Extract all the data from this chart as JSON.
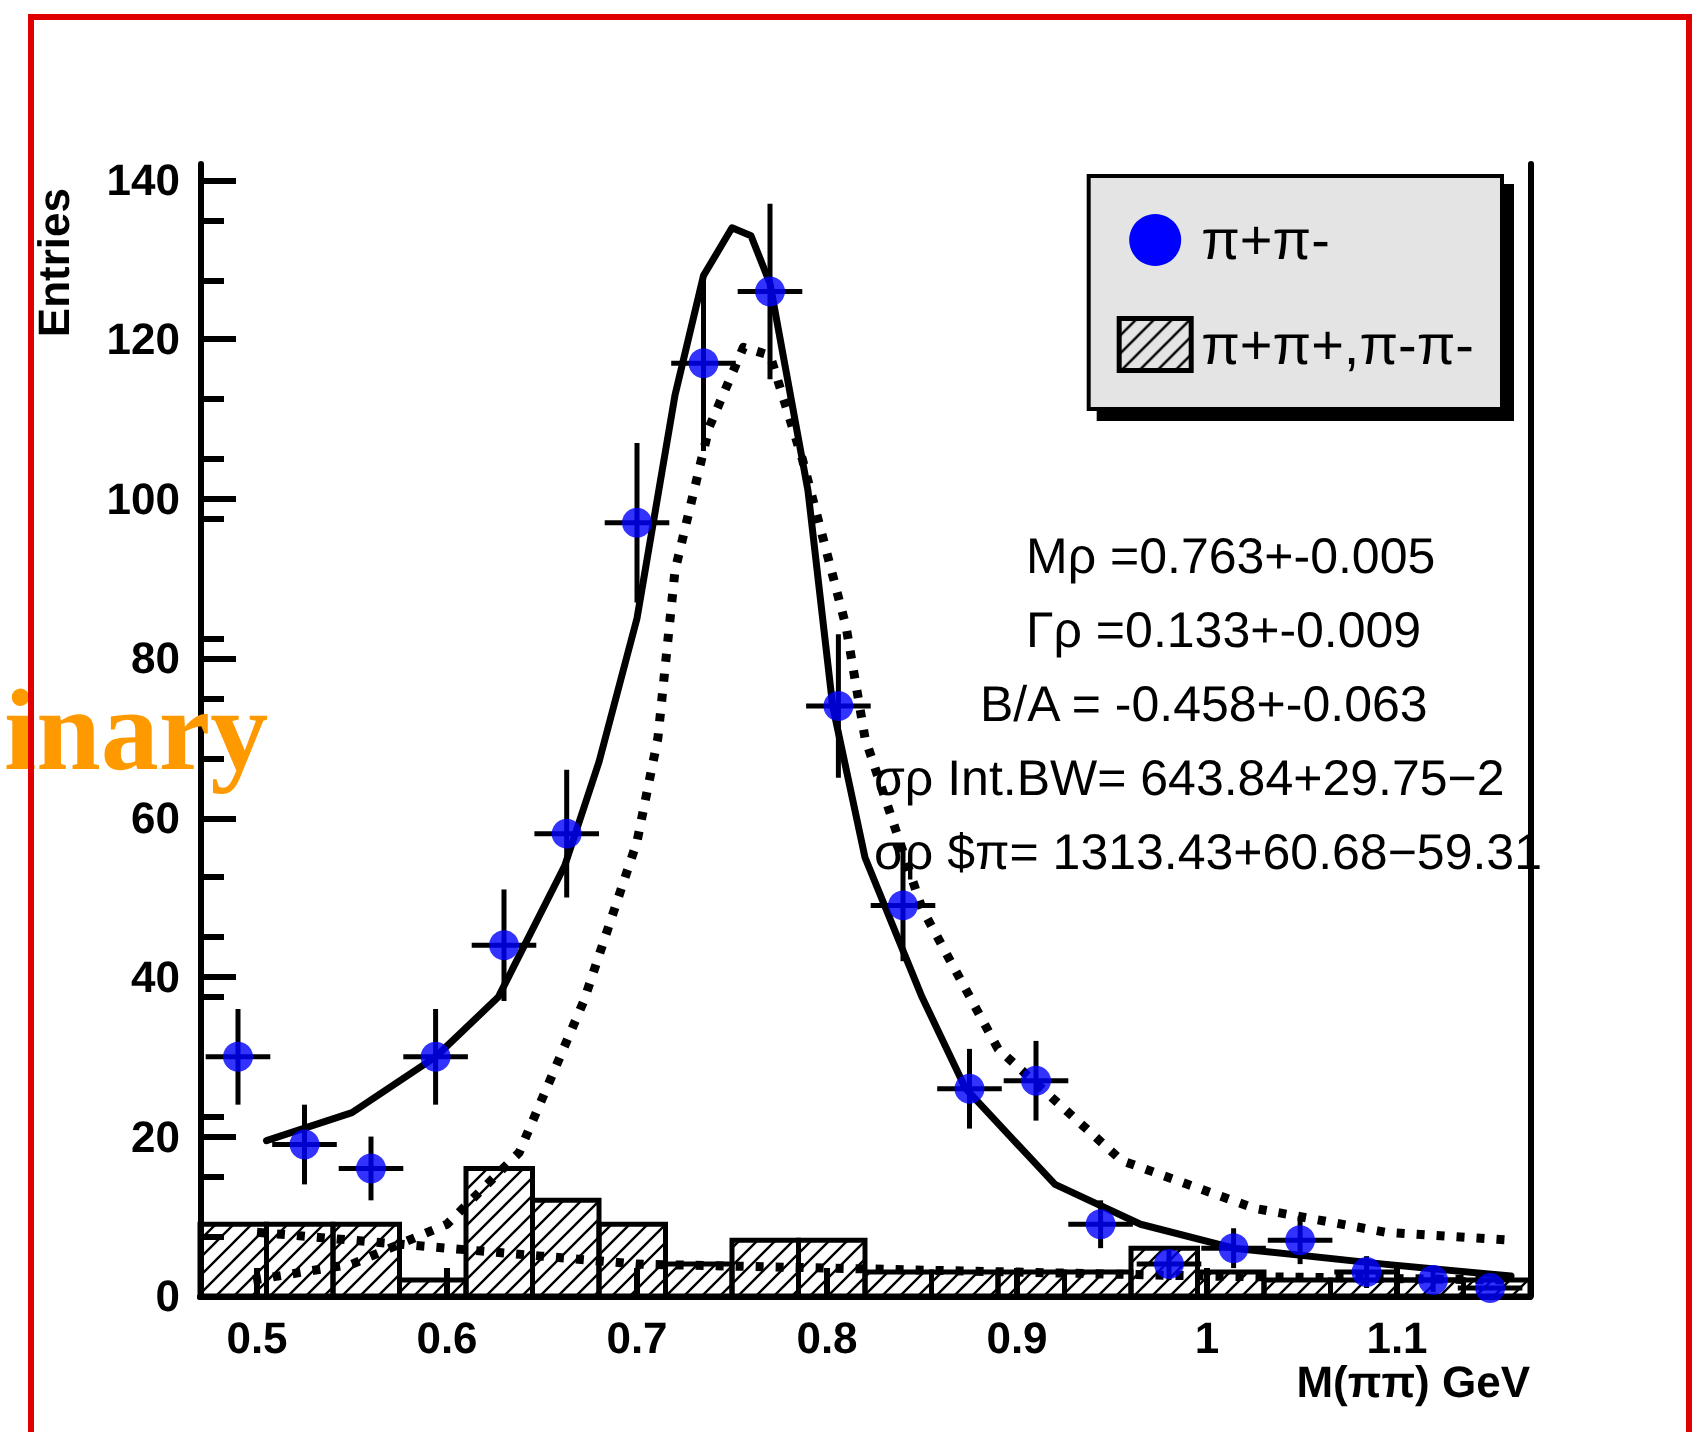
{
  "chart_data": {
    "type": "scatter",
    "xlabel": "M(ππ) GeV",
    "ylabel": "Entries",
    "xlim": [
      0.47,
      1.17
    ],
    "ylim": [
      0,
      142
    ],
    "xticks": [
      0.5,
      0.6,
      0.7,
      0.8,
      0.9,
      1,
      1.1
    ],
    "yticks": [
      0,
      20,
      40,
      60,
      80,
      100,
      120,
      140
    ],
    "grid": false,
    "legend": "top right",
    "marker": "circle",
    "annotations": [
      "Mρ =0.763+-0.005",
      "Γρ =0.133+-0.009",
      "B/A = -0.458+-0.063",
      "σρ Int.BW= 643.84+29.75−2",
      "σρ $π= 1313.43+60.68−59.31",
      "inary"
    ],
    "series": [
      {
        "name": "π+π-",
        "color": "#0000ff",
        "x": [
          0.49,
          0.525,
          0.56,
          0.594,
          0.63,
          0.663,
          0.7,
          0.735,
          0.77,
          0.806,
          0.84,
          0.875,
          0.91,
          0.944,
          0.98,
          1.014,
          1.049,
          1.084,
          1.119,
          1.149
        ],
        "values": [
          30,
          19,
          16,
          30,
          44,
          58,
          97,
          117,
          126,
          74,
          49,
          26,
          27,
          9,
          4,
          6,
          7,
          3,
          2,
          1
        ],
        "errors": [
          6,
          5,
          4,
          6,
          7,
          8,
          10,
          11,
          11,
          9,
          7,
          5,
          5,
          3,
          2,
          2.5,
          3,
          2,
          1.5,
          null
        ],
        "xerrors": [
          0.017,
          0.017,
          0.017,
          0.017,
          0.017,
          0.017,
          0.017,
          0.017,
          0.017,
          0.017,
          0.017,
          0.017,
          0.017,
          0.017,
          0.017,
          0.017,
          0.017,
          0.017,
          0.017,
          0.017
        ]
      },
      {
        "type": "histogram",
        "name": "π+π+,π-π-",
        "color": "#000000",
        "bins": [
          0.47,
          0.505,
          0.54,
          0.575,
          0.61,
          0.645,
          0.68,
          0.715,
          0.75,
          0.785,
          0.82,
          0.855,
          0.89,
          0.925,
          0.96,
          0.995,
          1.03,
          1.065,
          1.1,
          1.135,
          1.17
        ],
        "values": [
          9,
          9,
          9,
          2,
          16,
          12,
          9,
          4,
          7,
          7,
          3,
          3,
          3,
          3,
          6,
          3,
          2,
          2,
          2,
          2
        ]
      },
      {
        "type": "line",
        "marker": "none",
        "color": "#000000",
        "line_style": "solid",
        "x": [
          0.505,
          0.55,
          0.594,
          0.627,
          0.662,
          0.68,
          0.7,
          0.72,
          0.735,
          0.75,
          0.76,
          0.77,
          0.79,
          0.803,
          0.82,
          0.85,
          0.873,
          0.92,
          0.965,
          1.014,
          1.093,
          1.16
        ],
        "values": [
          19.5,
          23,
          30,
          37.5,
          54,
          67,
          85,
          113,
          128,
          134,
          133,
          127,
          101,
          74,
          55,
          37.5,
          26,
          14,
          9,
          6,
          4,
          2.5
        ]
      },
      {
        "type": "line",
        "marker": "none",
        "color": "#000000",
        "line_style": "dotted",
        "x": [
          0.498,
          0.55,
          0.6,
          0.638,
          0.672,
          0.7,
          0.711,
          0.72,
          0.738,
          0.756,
          0.77,
          0.787,
          0.81,
          0.82,
          0.85,
          0.89,
          0.955,
          1.025,
          1.094,
          1.16
        ],
        "values": [
          2,
          4,
          9,
          18,
          37,
          57,
          70,
          91,
          109,
          119,
          118,
          105,
          84,
          70,
          48.6,
          31,
          17,
          11,
          8,
          7
        ]
      },
      {
        "type": "line",
        "marker": "none",
        "color": "#000000",
        "line_style": "dotted",
        "x": [
          0.5,
          0.55,
          0.6,
          0.65,
          0.7,
          0.8,
          0.9,
          1.0,
          1.16
        ],
        "values": [
          8,
          7,
          6,
          5,
          4,
          3.5,
          3,
          2.5,
          2
        ]
      }
    ]
  }
}
